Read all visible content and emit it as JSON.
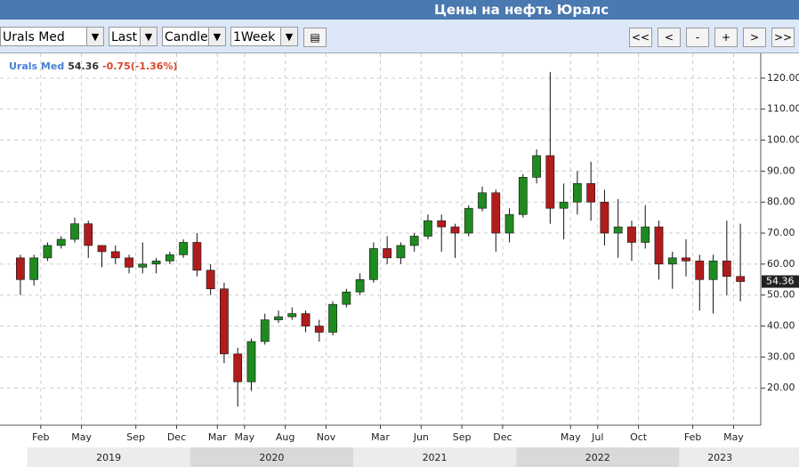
{
  "header": {
    "title": "Цены на нефть Юралс"
  },
  "toolbar": {
    "instrument": "Urals Med",
    "field": "Last",
    "chart_type": "Candle",
    "period": "1Week",
    "buttons": [
      "<<",
      "<",
      "-",
      "+",
      ">",
      ">>"
    ]
  },
  "chart_data": {
    "type": "candlestick",
    "name": "Urals Med",
    "last": 54.36,
    "change": "-0.75(-1.36%)",
    "up_color": "#1f8a1f",
    "down_color": "#b01c1c",
    "grid": true,
    "x": [
      "2018-12",
      "2019-01",
      "2019-02",
      "2019-03",
      "2019-04",
      "2019-05",
      "2019-06",
      "2019-07",
      "2019-08",
      "2019-09",
      "2019-10",
      "2019-11",
      "2019-12",
      "2020-01",
      "2020-02",
      "2020-03",
      "2020-04",
      "2020-05",
      "2020-06",
      "2020-07",
      "2020-08",
      "2020-09",
      "2020-10",
      "2020-11",
      "2020-12",
      "2021-01",
      "2021-02",
      "2021-03",
      "2021-04",
      "2021-05",
      "2021-06",
      "2021-07",
      "2021-08",
      "2021-09",
      "2021-10",
      "2021-11",
      "2021-12",
      "2022-01",
      "2022-02",
      "2022-03",
      "2022-04",
      "2022-05",
      "2022-06",
      "2022-07",
      "2022-08",
      "2022-09",
      "2022-10",
      "2022-11",
      "2022-12",
      "2023-01",
      "2023-02",
      "2023-03",
      "2023-04",
      "2023-05"
    ],
    "open": [
      62,
      55,
      62,
      66,
      68,
      73,
      66,
      64,
      62,
      59,
      60,
      61,
      63,
      67,
      58,
      52,
      31,
      22,
      35,
      42,
      43,
      44,
      40,
      38,
      47,
      51,
      55,
      65,
      62,
      66,
      69,
      74,
      72,
      70,
      78,
      83,
      70,
      76,
      88,
      95,
      78,
      80,
      86,
      80,
      70,
      72,
      67,
      72,
      60,
      62,
      61,
      55,
      61,
      56
    ],
    "high": [
      63,
      63,
      67,
      69,
      75,
      74,
      66,
      66,
      63,
      67,
      62,
      64,
      68,
      70,
      60,
      54,
      33,
      36,
      44,
      45,
      46,
      45,
      42,
      48,
      52,
      57,
      67,
      69,
      67,
      70,
      76,
      76,
      73,
      79,
      85,
      84,
      78,
      89,
      97,
      122,
      86,
      90,
      93,
      84,
      81,
      74,
      79,
      74,
      64,
      68,
      63,
      63,
      74,
      73
    ],
    "low": [
      50,
      53,
      61,
      65,
      67,
      62,
      59,
      60,
      57,
      57,
      57,
      60,
      62,
      56,
      50,
      28,
      14,
      19,
      34,
      41,
      42,
      38,
      35,
      37,
      46,
      50,
      54,
      60,
      60,
      64,
      68,
      64,
      62,
      69,
      77,
      64,
      67,
      75,
      86,
      73,
      68,
      76,
      74,
      66,
      62,
      61,
      65,
      55,
      52,
      56,
      45,
      44,
      50,
      48
    ],
    "close": [
      55,
      62,
      66,
      68,
      73,
      66,
      64,
      62,
      59,
      60,
      61,
      63,
      67,
      58,
      52,
      31,
      22,
      35,
      42,
      43,
      44,
      40,
      38,
      47,
      51,
      55,
      65,
      62,
      66,
      69,
      74,
      72,
      70,
      78,
      83,
      70,
      76,
      88,
      95,
      78,
      80,
      86,
      80,
      70,
      72,
      67,
      72,
      60,
      62,
      61,
      55,
      61,
      56,
      54.36
    ],
    "xlim": [
      "2018-11",
      "2023-07"
    ],
    "xticks": [
      {
        "value": "2019-02",
        "label": "Feb"
      },
      {
        "value": "2019-05",
        "label": "May"
      },
      {
        "value": "2019-09",
        "label": "Sep"
      },
      {
        "value": "2019-12",
        "label": "Dec"
      },
      {
        "value": "2020-03",
        "label": "Mar"
      },
      {
        "value": "2020-05",
        "label": "May"
      },
      {
        "value": "2020-08",
        "label": "Aug"
      },
      {
        "value": "2020-11",
        "label": "Nov"
      },
      {
        "value": "2021-03",
        "label": "Mar"
      },
      {
        "value": "2021-06",
        "label": "Jun"
      },
      {
        "value": "2021-09",
        "label": "Sep"
      },
      {
        "value": "2021-12",
        "label": "Dec"
      },
      {
        "value": "2022-05",
        "label": "May"
      },
      {
        "value": "2022-07",
        "label": "Jul"
      },
      {
        "value": "2022-10",
        "label": "Oct"
      },
      {
        "value": "2023-02",
        "label": "Feb"
      },
      {
        "value": "2023-05",
        "label": "May"
      }
    ],
    "year_ticks": [
      2019,
      2020,
      2021,
      2022,
      2023
    ],
    "ylim": [
      8,
      128
    ],
    "yticks": [
      {
        "value": 20,
        "label": "20.00"
      },
      {
        "value": 30,
        "label": "30.00"
      },
      {
        "value": 40,
        "label": "40.00"
      },
      {
        "value": 50,
        "label": "50.00"
      },
      {
        "value": 60,
        "label": "60.00"
      },
      {
        "value": 70,
        "label": "70.00"
      },
      {
        "value": 80,
        "label": "80.00"
      },
      {
        "value": 90,
        "label": "90.00"
      },
      {
        "value": 100,
        "label": "100.00"
      },
      {
        "value": 110,
        "label": "110.00"
      },
      {
        "value": 120,
        "label": "120.00"
      }
    ]
  }
}
